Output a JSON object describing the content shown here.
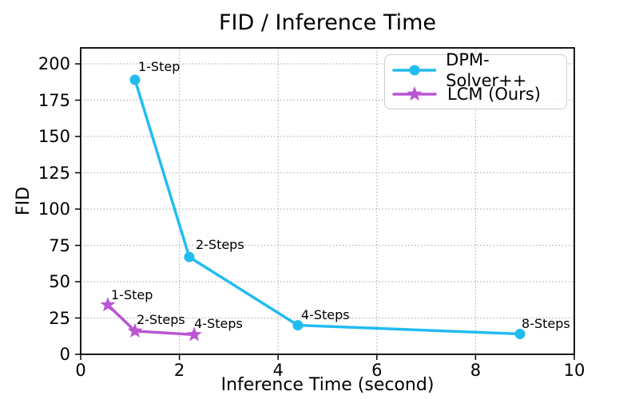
{
  "chart_data": {
    "type": "line",
    "title": "FID / Inference Time",
    "xlabel": "Inference Time (second)",
    "ylabel": "FID",
    "xlim": [
      0,
      10
    ],
    "ylim": [
      0,
      211
    ],
    "xticks": [
      0,
      2,
      4,
      6,
      8,
      10
    ],
    "yticks": [
      0,
      25,
      50,
      75,
      100,
      125,
      150,
      175,
      200
    ],
    "grid": "dotted",
    "legend_position": "upper right",
    "series": [
      {
        "name": "DPM-Solver++",
        "color": "#22BCF0",
        "marker": "circle",
        "points": [
          {
            "x": 1.1,
            "y": 189,
            "label": "1-Step",
            "label_dx": 4,
            "label_dy": -26
          },
          {
            "x": 2.2,
            "y": 67,
            "label": "2-Steps",
            "label_dx": 8,
            "label_dy": -25
          },
          {
            "x": 4.4,
            "y": 20,
            "label": "4-Steps",
            "label_dx": 4,
            "label_dy": -23
          },
          {
            "x": 8.9,
            "y": 14,
            "label": "8-Steps",
            "label_dx": 2,
            "label_dy": -23
          }
        ]
      },
      {
        "name": "LCM (Ours)",
        "color": "#BA55D3",
        "marker": "star",
        "points": [
          {
            "x": 0.55,
            "y": 34,
            "label": "1-Step",
            "label_dx": 4,
            "label_dy": -22
          },
          {
            "x": 1.1,
            "y": 16,
            "label": "2-Steps",
            "label_dx": 2,
            "label_dy": -24
          },
          {
            "x": 2.3,
            "y": 13.5,
            "label": "4-Steps",
            "label_dx": 0,
            "label_dy": -23
          }
        ]
      }
    ],
    "colors": {
      "grid": "#b3b3b3",
      "spine": "#000000",
      "text": "#000000",
      "legend_border": "#cccccc"
    }
  }
}
